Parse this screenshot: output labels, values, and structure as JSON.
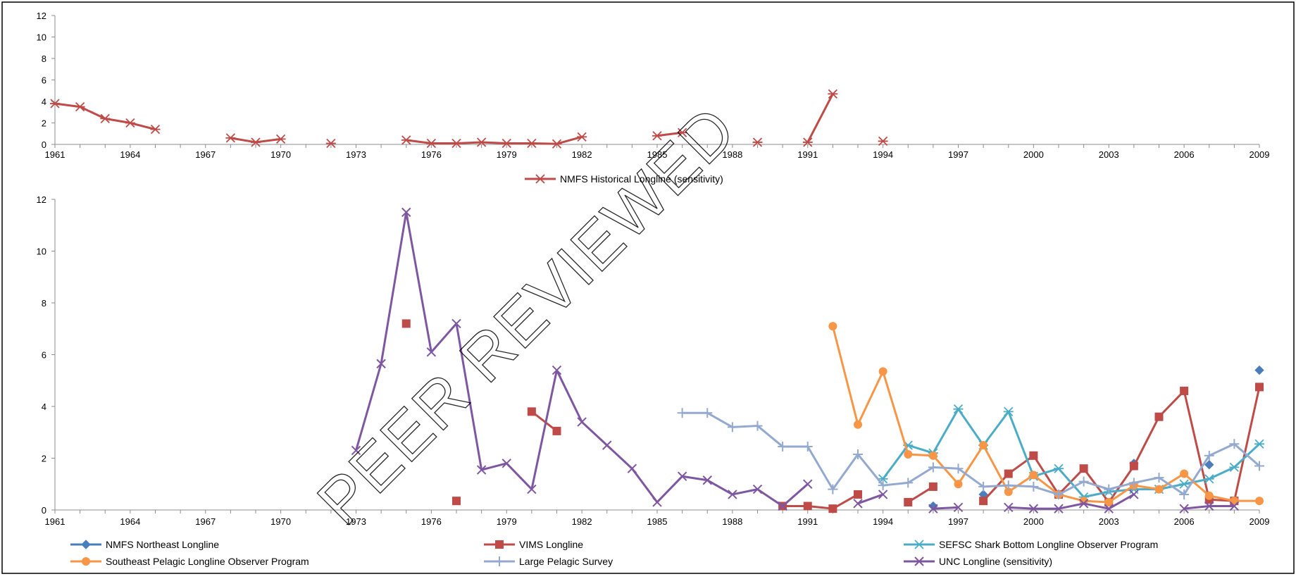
{
  "watermark": "PEER REVIEWED",
  "colors": {
    "nmfs_northeast": "#4a7ebb",
    "vims": "#be4b48",
    "sefsc": "#4bacc6",
    "southeast_pelagic": "#f79646",
    "large_pelagic": "#93a9cf",
    "unc": "#7e57a0",
    "nmfs_historical": "#be4b48",
    "watermark": "#000000"
  },
  "chart_data": [
    {
      "type": "line",
      "x_ticks": [
        "1961",
        "1964",
        "1967",
        "1970",
        "1973",
        "1976",
        "1979",
        "1982",
        "1985",
        "1988",
        "1991",
        "1994",
        "1997",
        "2000",
        "2003",
        "2006",
        "2009"
      ],
      "y_ticks": [
        "0",
        "2",
        "4",
        "6",
        "8",
        "10",
        "12"
      ],
      "ylim": [
        0,
        12
      ],
      "xlim": [
        1961,
        2009
      ],
      "legend_position": "bottom",
      "series": [
        {
          "name": "NMFS Historical Longline (sensitivity)",
          "color_key": "nmfs_historical",
          "marker": "asterisk",
          "points": [
            [
              1961,
              3.8
            ],
            [
              1962,
              3.5
            ],
            [
              1963,
              2.4
            ],
            [
              1964,
              2.0
            ],
            [
              1965,
              1.4
            ],
            null,
            [
              1968,
              0.6
            ],
            [
              1969,
              0.2
            ],
            [
              1970,
              0.5
            ],
            null,
            [
              1972,
              0.1
            ],
            null,
            [
              1975,
              0.4
            ],
            [
              1976,
              0.1
            ],
            [
              1977,
              0.1
            ],
            [
              1978,
              0.2
            ],
            [
              1979,
              0.1
            ],
            [
              1980,
              0.1
            ],
            [
              1981,
              0.05
            ],
            [
              1982,
              0.7
            ],
            null,
            [
              1985,
              0.8
            ],
            [
              1986,
              1.1
            ],
            null,
            [
              1989,
              0.2
            ],
            null,
            [
              1991,
              0.2
            ],
            [
              1992,
              4.7
            ],
            null,
            [
              1994,
              0.3
            ]
          ]
        }
      ]
    },
    {
      "type": "line",
      "x_ticks": [
        "1961",
        "1964",
        "1967",
        "1970",
        "1973",
        "1976",
        "1979",
        "1982",
        "1985",
        "1988",
        "1991",
        "1994",
        "1997",
        "2000",
        "2003",
        "2006",
        "2009"
      ],
      "y_ticks": [
        "0",
        "2",
        "4",
        "6",
        "8",
        "10",
        "12"
      ],
      "ylim": [
        0,
        12
      ],
      "xlim": [
        1961,
        2009
      ],
      "legend_position": "bottom",
      "series": [
        {
          "name": "NMFS Northeast Longline",
          "color_key": "nmfs_northeast",
          "marker": "diamond",
          "points": [
            [
              1996,
              0.15
            ],
            null,
            [
              1998,
              0.6
            ],
            null,
            [
              2004,
              1.8
            ],
            null,
            [
              2007,
              1.75
            ],
            null,
            [
              2009,
              5.4
            ]
          ]
        },
        {
          "name": "VIMS Longline",
          "color_key": "vims",
          "marker": "square",
          "points": [
            [
              1975,
              7.2
            ],
            null,
            [
              1977,
              0.35
            ],
            null,
            [
              1980,
              3.8
            ],
            [
              1981,
              3.05
            ],
            null,
            [
              1990,
              0.15
            ],
            [
              1991,
              0.15
            ],
            [
              1992,
              0.05
            ],
            [
              1993,
              0.6
            ],
            null,
            [
              1995,
              0.3
            ],
            [
              1996,
              0.9
            ],
            null,
            [
              1998,
              0.35
            ],
            [
              1999,
              1.4
            ],
            [
              2000,
              2.1
            ],
            [
              2001,
              0.6
            ],
            [
              2002,
              1.6
            ],
            [
              2003,
              0.3
            ],
            [
              2004,
              1.7
            ],
            [
              2005,
              3.6
            ],
            [
              2006,
              4.6
            ],
            [
              2007,
              0.4
            ],
            [
              2008,
              0.35
            ],
            [
              2009,
              4.75
            ]
          ]
        },
        {
          "name": "SEFSC Shark Bottom Longline Observer Program",
          "color_key": "sefsc",
          "marker": "asterisk",
          "points": [
            [
              1994,
              1.2
            ],
            [
              1995,
              2.5
            ],
            [
              1996,
              2.2
            ],
            [
              1997,
              3.9
            ],
            [
              1998,
              2.5
            ],
            [
              1999,
              3.8
            ],
            [
              2000,
              1.3
            ],
            [
              2001,
              1.6
            ],
            [
              2002,
              0.5
            ],
            [
              2003,
              0.7
            ],
            [
              2004,
              0.8
            ],
            [
              2005,
              0.8
            ],
            [
              2006,
              1.0
            ],
            [
              2007,
              1.2
            ],
            [
              2008,
              1.65
            ],
            [
              2009,
              2.55
            ]
          ]
        },
        {
          "name": "Southeast Pelagic Longline Observer Program",
          "color_key": "southeast_pelagic",
          "marker": "circle",
          "points": [
            [
              1992,
              7.1
            ],
            [
              1993,
              3.3
            ],
            [
              1994,
              5.35
            ],
            [
              1995,
              2.15
            ],
            [
              1996,
              2.1
            ],
            [
              1997,
              1.0
            ],
            [
              1998,
              2.5
            ],
            [
              1999,
              0.7
            ],
            [
              2000,
              1.35
            ],
            [
              2001,
              0.6
            ],
            [
              2002,
              0.35
            ],
            [
              2003,
              0.3
            ],
            [
              2004,
              0.95
            ],
            [
              2005,
              0.8
            ],
            [
              2006,
              1.4
            ],
            [
              2007,
              0.55
            ],
            [
              2008,
              0.35
            ],
            [
              2009,
              0.35
            ]
          ]
        },
        {
          "name": "Large Pelagic Survey",
          "color_key": "large_pelagic",
          "marker": "plus",
          "points": [
            [
              1986,
              3.75
            ],
            [
              1987,
              3.75
            ],
            [
              1988,
              3.2
            ],
            [
              1989,
              3.25
            ],
            [
              1990,
              2.45
            ],
            [
              1991,
              2.45
            ],
            [
              1992,
              0.8
            ],
            [
              1993,
              2.15
            ],
            [
              1994,
              0.95
            ],
            [
              1995,
              1.05
            ],
            [
              1996,
              1.65
            ],
            [
              1997,
              1.6
            ],
            [
              1998,
              0.9
            ],
            [
              1999,
              0.95
            ],
            [
              2000,
              0.9
            ],
            [
              2001,
              0.6
            ],
            [
              2002,
              1.1
            ],
            [
              2003,
              0.8
            ],
            [
              2004,
              1.05
            ],
            [
              2005,
              1.25
            ],
            [
              2006,
              0.6
            ],
            [
              2007,
              2.1
            ],
            [
              2008,
              2.55
            ],
            [
              2009,
              1.7
            ]
          ]
        },
        {
          "name": "UNC Longline (sensitivity)",
          "color_key": "unc",
          "marker": "cross",
          "points": [
            [
              1973,
              2.3
            ],
            [
              1974,
              5.65
            ],
            [
              1975,
              11.5
            ],
            [
              1976,
              6.1
            ],
            [
              1977,
              7.2
            ],
            [
              1978,
              1.55
            ],
            [
              1979,
              1.8
            ],
            [
              1980,
              0.8
            ],
            [
              1981,
              5.4
            ],
            [
              1982,
              3.4
            ],
            [
              1983,
              2.5
            ],
            [
              1984,
              1.6
            ],
            [
              1985,
              0.3
            ],
            [
              1986,
              1.3
            ],
            [
              1987,
              1.15
            ],
            [
              1988,
              0.6
            ],
            [
              1989,
              0.8
            ],
            [
              1990,
              0.15
            ],
            [
              1991,
              1.0
            ],
            null,
            [
              1993,
              0.25
            ],
            [
              1994,
              0.6
            ],
            null,
            [
              1996,
              0.05
            ],
            [
              1997,
              0.1
            ],
            null,
            [
              1999,
              0.1
            ],
            [
              2000,
              0.05
            ],
            [
              2001,
              0.05
            ],
            [
              2002,
              0.25
            ],
            [
              2003,
              0.05
            ],
            [
              2004,
              0.6
            ],
            null,
            [
              2006,
              0.05
            ],
            [
              2007,
              0.15
            ],
            [
              2008,
              0.15
            ]
          ]
        }
      ]
    }
  ]
}
